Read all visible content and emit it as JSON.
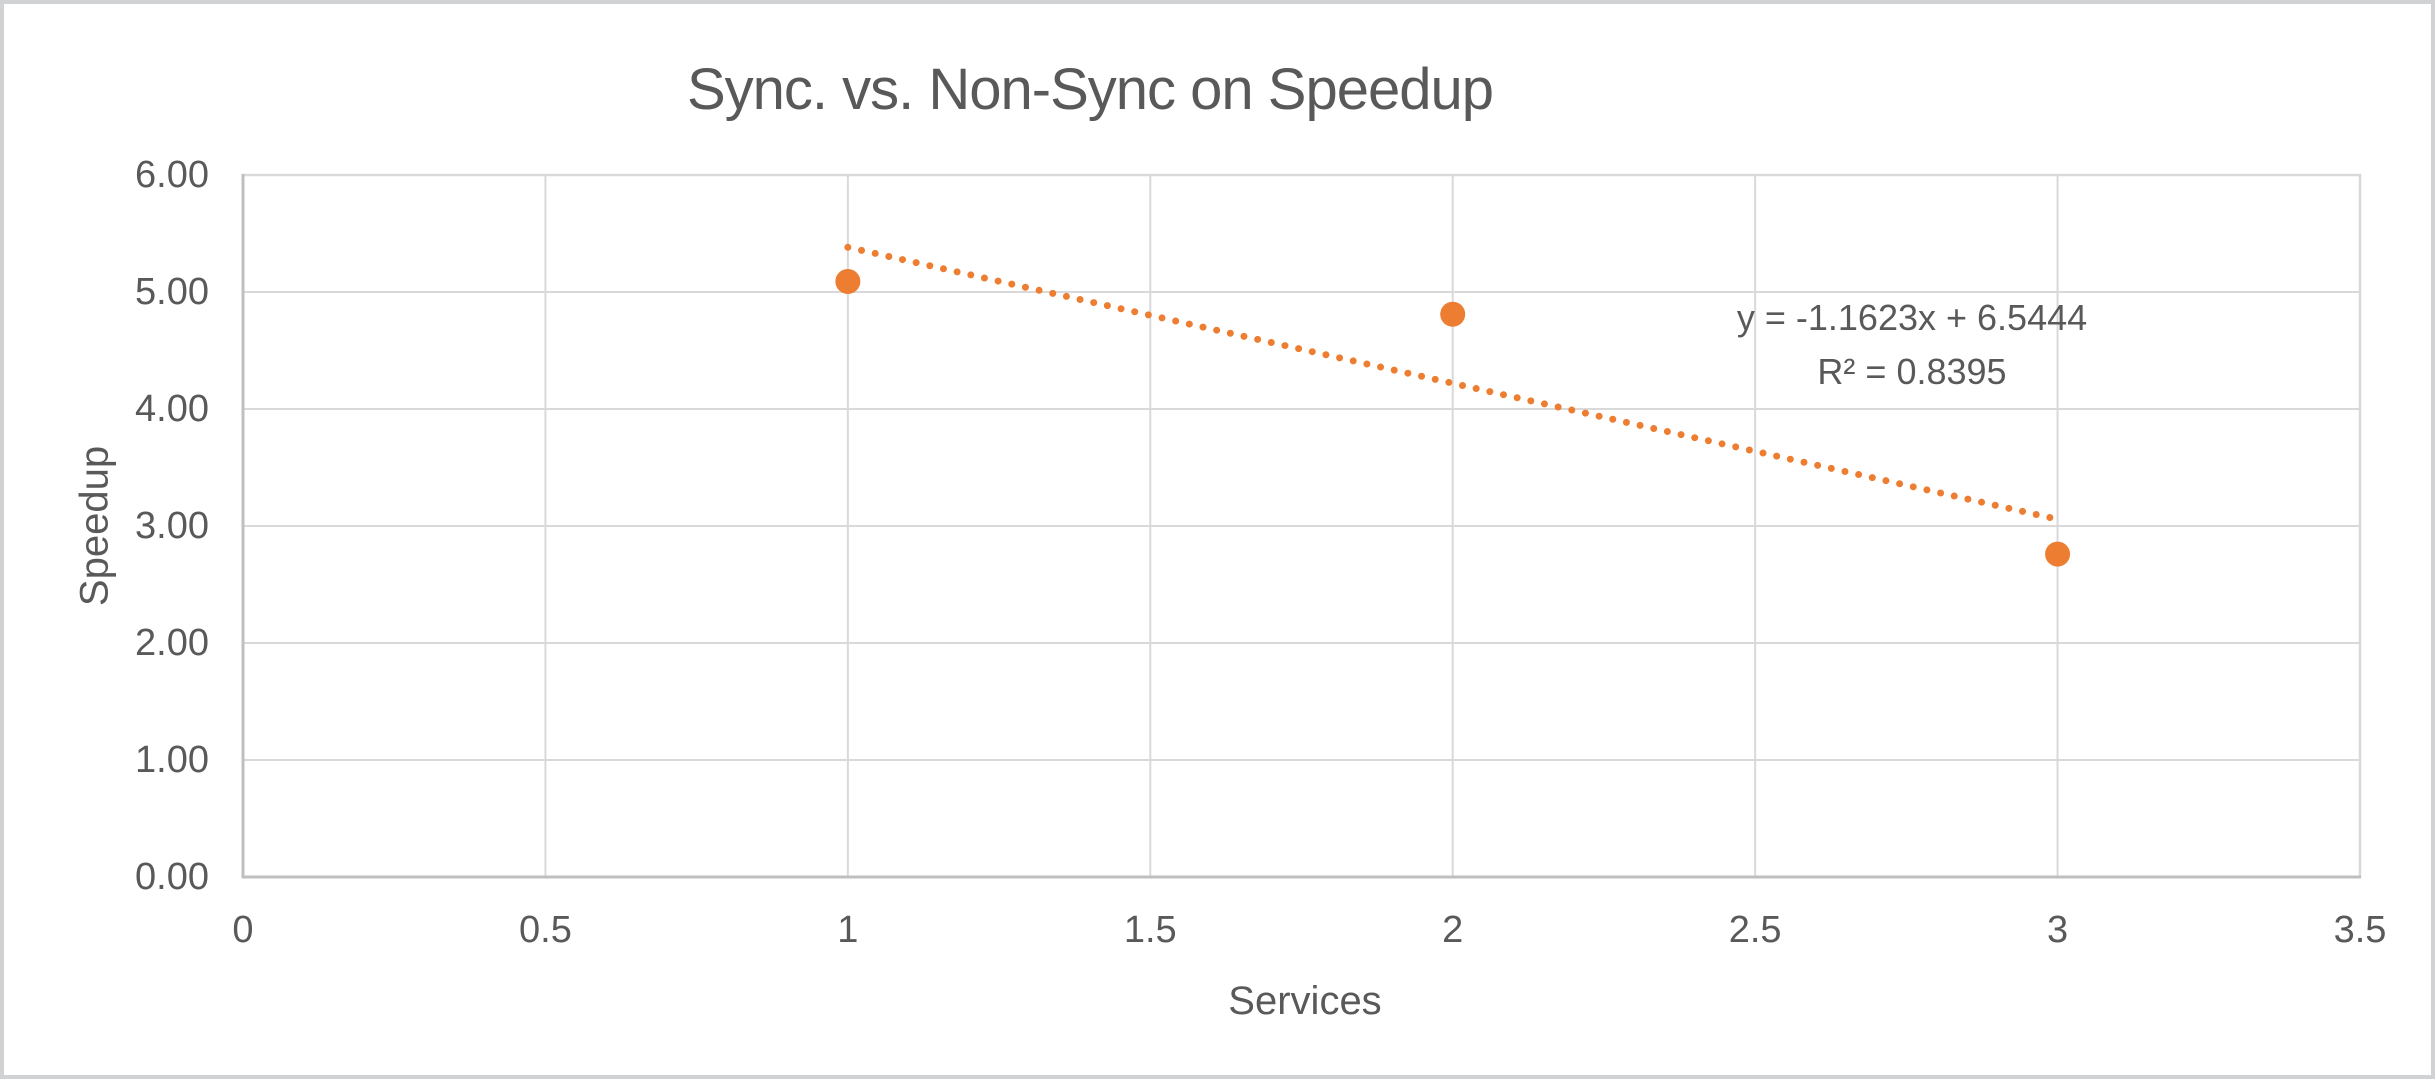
{
  "colors": {
    "accent_orange": "#ED7D31",
    "text_gray": "#595959",
    "gridline_gray": "#D9D9D9",
    "axis_line_gray": "#BFBFBF",
    "frame_gray": "#D1D2D3",
    "background": "#FFFFFF"
  },
  "chart_data": {
    "type": "scatter",
    "title": "Sync. vs. Non-Sync on Speedup",
    "xlabel": "Services",
    "ylabel": "Speedup",
    "points": [
      {
        "x": 1,
        "y": 5.09
      },
      {
        "x": 2,
        "y": 4.81
      },
      {
        "x": 3,
        "y": 2.76
      }
    ],
    "xlim": [
      0,
      3.5
    ],
    "ylim": [
      0,
      6
    ],
    "x_ticks": [
      0,
      0.5,
      1,
      1.5,
      2,
      2.5,
      3,
      3.5
    ],
    "x_tick_labels": [
      "0",
      "0.5",
      "1",
      "1.5",
      "2",
      "2.5",
      "3",
      "3.5"
    ],
    "y_ticks": [
      0,
      1,
      2,
      3,
      4,
      5,
      6
    ],
    "y_tick_labels": [
      "0.00",
      "1.00",
      "2.00",
      "3.00",
      "4.00",
      "5.00",
      "6.00"
    ],
    "grid": true,
    "legend": "none",
    "marker_radius_px": 12.5,
    "trendline": {
      "style": "dotted",
      "slope": -1.1623,
      "intercept": 6.5444,
      "r_squared": 0.8395,
      "x_start": 1,
      "x_end": 3,
      "equation_label": "y = -1.1623x + 6.5444",
      "r2_label": "R² = 0.8395"
    }
  }
}
